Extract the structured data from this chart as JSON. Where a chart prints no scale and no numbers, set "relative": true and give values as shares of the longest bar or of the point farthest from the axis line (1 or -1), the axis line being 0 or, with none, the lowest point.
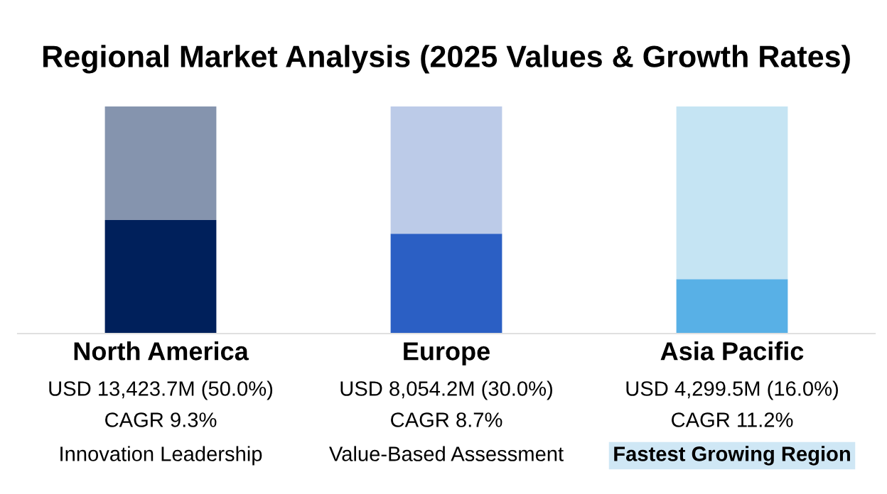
{
  "chart_data": {
    "type": "bar",
    "title": "Regional Market Analysis (2025 Values & Growth Rates)",
    "categories": [
      "North America",
      "Europe",
      "Asia Pacific"
    ],
    "stacked": true,
    "relative": true,
    "series": [
      {
        "colors": [
          "#00205b",
          "#2b5fc4",
          "#58b0e6"
        ],
        "values": [
          0.5,
          0.44,
          0.24
        ]
      },
      {
        "colors": [
          "#8594ae",
          "#bccbe8",
          "#c5e4f3"
        ],
        "values": [
          0.5,
          0.56,
          0.76
        ]
      }
    ],
    "annotations": [
      "USD 13,423.7M (50.0%)",
      "CAGR 9.3%",
      "Innovation Leadership",
      "USD 8,054.2M (30.0%)",
      "CAGR 8.7%",
      "Value-Based Assessment",
      "USD 4,299.5M (16.0%)",
      "CAGR 11.2%",
      "Fastest Growing Region"
    ],
    "grid": false,
    "legend": false
  }
}
